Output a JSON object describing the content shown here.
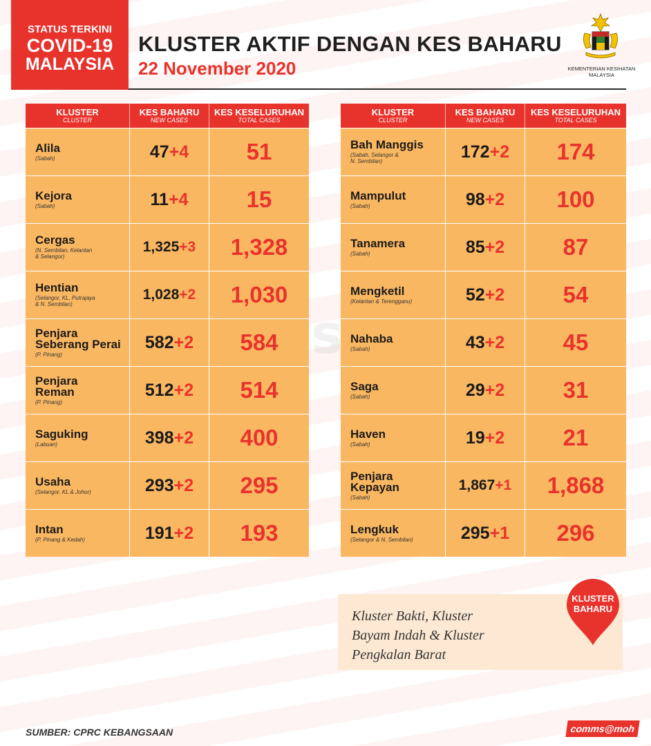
{
  "header": {
    "status_line1": "STATUS TERKINI",
    "status_line2": "COVID-19",
    "status_line3": "MALAYSIA",
    "title": "KLUSTER AKTIF DENGAN KES BAHARU",
    "date": "22 November 2020",
    "ministry": "KEMENTERIAN KESIHATAN MALAYSIA",
    "crest_icon": "coat-of-arms-icon"
  },
  "columns": {
    "cluster": "KLUSTER",
    "cluster_sub": "CLUSTER",
    "new": "KES BAHARU",
    "new_sub": "NEW CASES",
    "total": "KES KESELURUHAN",
    "total_sub": "TOTAL CASES"
  },
  "left_table": [
    {
      "name": "Alila",
      "loc": "(Sabah)",
      "base": "47",
      "add": "+4",
      "total": "51"
    },
    {
      "name": "Kejora",
      "loc": "(Sabah)",
      "base": "11",
      "add": "+4",
      "total": "15"
    },
    {
      "name": "Cergas",
      "loc": "(N. Sembilan, Kelantan\n& Selangor)",
      "base": "1,325",
      "add": "+3",
      "total": "1,328"
    },
    {
      "name": "Hentian",
      "loc": "(Selangor, KL, Putrajaya\n& N. Sembilan)",
      "base": "1,028",
      "add": "+2",
      "total": "1,030"
    },
    {
      "name": "Penjara\nSeberang Perai",
      "loc": "(P. Pinang)",
      "base": "582",
      "add": "+2",
      "total": "584"
    },
    {
      "name": "Penjara\nReman",
      "loc": "(P. Pinang)",
      "base": "512",
      "add": "+2",
      "total": "514"
    },
    {
      "name": "Saguking",
      "loc": "(Labuan)",
      "base": "398",
      "add": "+2",
      "total": "400"
    },
    {
      "name": "Usaha",
      "loc": "(Selangor, KL & Johor)",
      "base": "293",
      "add": "+2",
      "total": "295"
    },
    {
      "name": "Intan",
      "loc": "(P. Pinang & Kedah)",
      "base": "191",
      "add": "+2",
      "total": "193"
    }
  ],
  "right_table": [
    {
      "name": "Bah Manggis",
      "loc": "(Sabah, Selangor &\nN. Sembilan)",
      "base": "172",
      "add": "+2",
      "total": "174"
    },
    {
      "name": "Mampulut",
      "loc": "(Sabah)",
      "base": "98",
      "add": "+2",
      "total": "100"
    },
    {
      "name": "Tanamera",
      "loc": "(Sabah)",
      "base": "85",
      "add": "+2",
      "total": "87"
    },
    {
      "name": "Mengketil",
      "loc": "(Kelantan & Terengganu)",
      "base": "52",
      "add": "+2",
      "total": "54"
    },
    {
      "name": "Nahaba",
      "loc": "(Sabah)",
      "base": "43",
      "add": "+2",
      "total": "45"
    },
    {
      "name": "Saga",
      "loc": "(Sabah)",
      "base": "29",
      "add": "+2",
      "total": "31"
    },
    {
      "name": "Haven",
      "loc": "(Sabah)",
      "base": "19",
      "add": "+2",
      "total": "21"
    },
    {
      "name": "Penjara\nKepayan",
      "loc": "(Sabah)",
      "base": "1,867",
      "add": "+1",
      "total": "1,868"
    },
    {
      "name": "Lengkuk",
      "loc": "(Selangor & N. Sembilan)",
      "base": "295",
      "add": "+1",
      "total": "296"
    }
  ],
  "new_clusters": {
    "badge": "KLUSTER BAHARU",
    "badge_icon": "map-pin-icon",
    "text": "Kluster Bakti, Kluster\nBayam Indah  & Kluster\nPengkalan Barat"
  },
  "footer": {
    "source": "SUMBER: CPRC KEBANGSAAN",
    "brand": "comms@moh"
  },
  "watermark": "comms@moh",
  "colors": {
    "accent_red": "#e8332c",
    "cell_orange": "#fab761",
    "note_bg": "#fde9d3"
  }
}
